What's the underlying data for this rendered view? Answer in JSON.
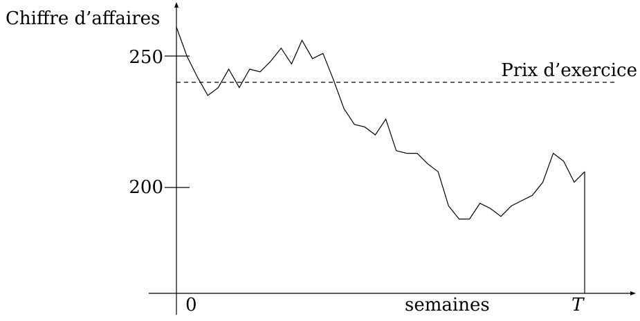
{
  "chart_data": {
    "type": "line",
    "title": "",
    "ylabel": "Chiffre d’affaires",
    "xlabel": "semaines",
    "x_start_label": "0",
    "x_end_label": "T",
    "yticks": [
      {
        "value": 250,
        "label": "250"
      },
      {
        "value": 200,
        "label": "200"
      }
    ],
    "ylim": [
      160,
      265
    ],
    "grid": false,
    "legend": "none",
    "reference_line": {
      "label": "Prix d’exercice",
      "value": 240,
      "style": "dashed"
    },
    "series": [
      {
        "values": [
          261,
          250,
          242,
          235,
          238,
          245,
          238,
          245,
          244,
          248,
          253,
          247,
          256,
          249,
          251,
          241,
          230,
          224,
          223,
          220,
          226,
          214,
          213,
          213,
          209,
          206,
          193,
          188,
          188,
          194,
          192,
          189,
          193,
          195,
          197,
          202,
          213,
          210,
          202,
          206
        ]
      }
    ],
    "colors": {
      "line": "#000000",
      "axes": "#000000",
      "background": "#ffffff"
    }
  }
}
